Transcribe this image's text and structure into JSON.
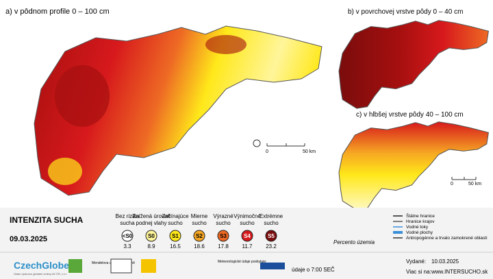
{
  "maps": [
    {
      "title": "a) v pôdnom profile 0 – 100 cm"
    },
    {
      "title": "b) v povrchovej vrstve pôdy 0 – 40 cm"
    },
    {
      "title": "c) v hlbšej vrstve pôdy 40 – 100 cm"
    }
  ],
  "scale_bar": {
    "start": "0",
    "end": "50 km"
  },
  "legend": {
    "title": "INTENZITA SUCHA",
    "date": "09.03.2025",
    "percent_label": "Percento územia",
    "classes": [
      {
        "name": "Bez rizika sucha",
        "code": "<S0",
        "percent": 3.3,
        "color": "#ffffff"
      },
      {
        "name": "Znížená úroveň podnej vlahy",
        "code": "S0",
        "percent": 8.9,
        "color": "#fff59a"
      },
      {
        "name": "Začínajúce sucho",
        "code": "S1",
        "percent": 16.5,
        "color": "#ffe81a"
      },
      {
        "name": "Mierne sucho",
        "code": "S2",
        "percent": 18.6,
        "color": "#f6a623"
      },
      {
        "name": "Výrazné sucho",
        "code": "S3",
        "percent": 17.8,
        "color": "#ee6a24"
      },
      {
        "name": "Výnimočné sucho",
        "code": "S4",
        "percent": 11.7,
        "color": "#d7191c"
      },
      {
        "name": "Extrémne sucho",
        "code": "S5",
        "percent": 23.2,
        "color": "#7a0c0c"
      }
    ]
  },
  "map_legend": [
    "Štátne hranice",
    "Hranice krajov",
    "Vodné toky",
    "Vodné plochy",
    "Antropogénne a trvalo zamokrené oblasti"
  ],
  "footer": {
    "logo": "CzechGlobe",
    "logo_sub": "Ústav výzkumu globální změny AV ČR, v.v.i.",
    "university": "Mendelova univerzita v Brně",
    "meteo": "Meteorologické údaje poskytuje:",
    "time": "údaje o 7:00 SEČ",
    "issued_label": "Vydané:",
    "issued": "10.03.2025",
    "more_label": "Viac si na:",
    "more_url": "www.INTERSUCHO.sk"
  }
}
